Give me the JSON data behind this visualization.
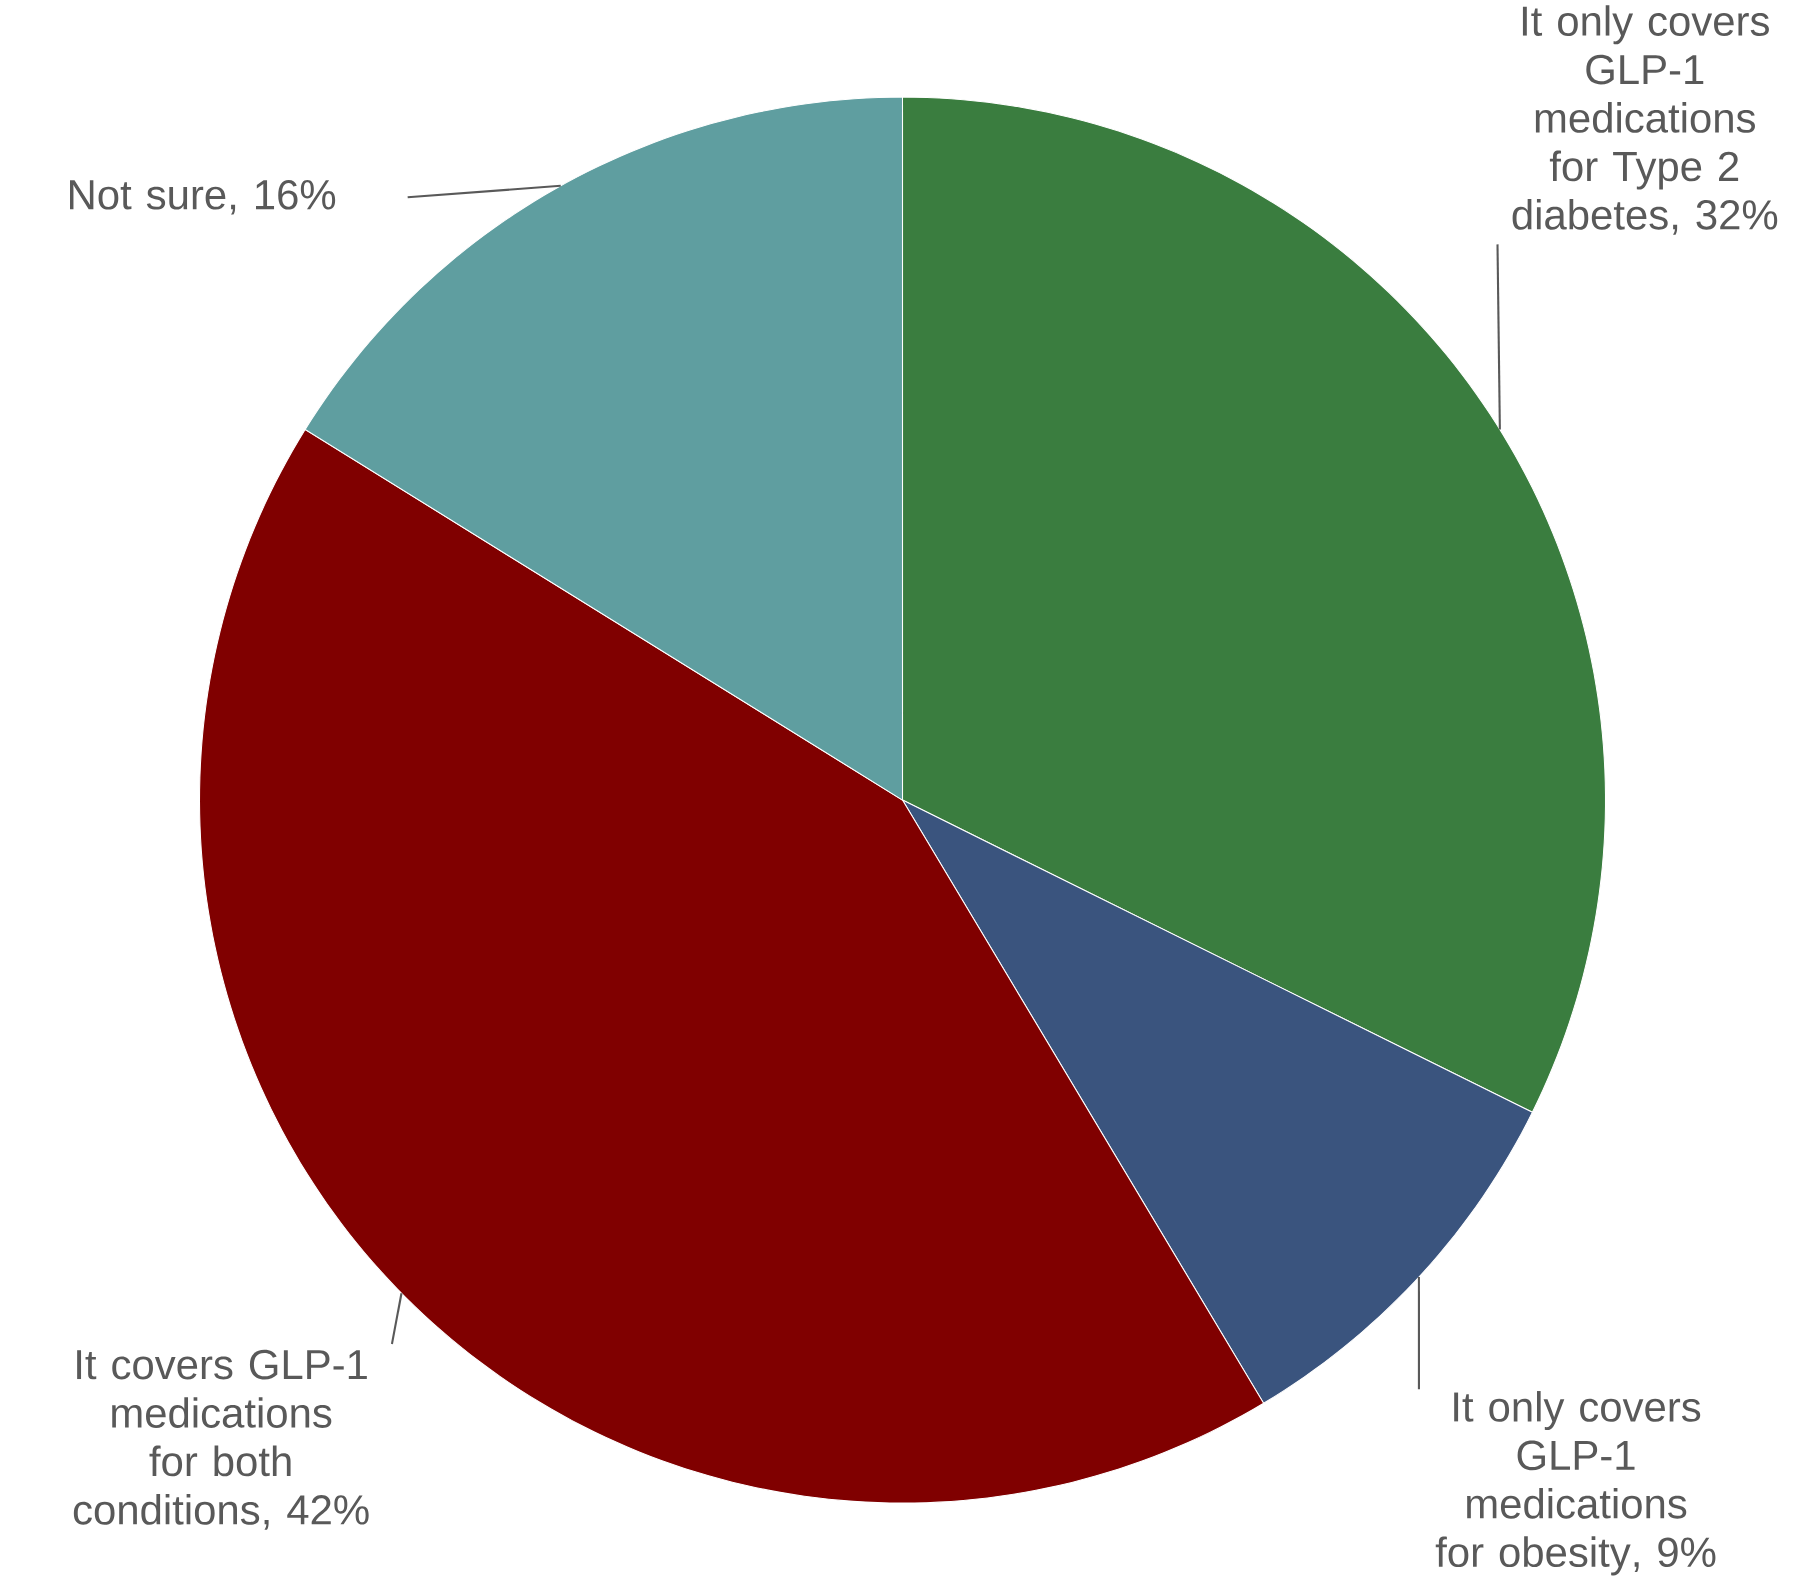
{
  "chart_data": {
    "type": "pie",
    "categories": [
      "It only covers GLP-1 medications for Type 2 diabetes",
      "It only covers GLP-1 medications for obesity",
      "It covers GLP-1 medications for both conditions",
      "Not sure"
    ],
    "values": [
      32,
      9,
      42,
      16
    ],
    "value_labels": [
      ", 32%",
      ", 9%",
      ", 42%",
      ", 16%"
    ],
    "colors": [
      "#3a7d3f",
      "#3a547e",
      "#800000",
      "#5f9ea0"
    ]
  }
}
